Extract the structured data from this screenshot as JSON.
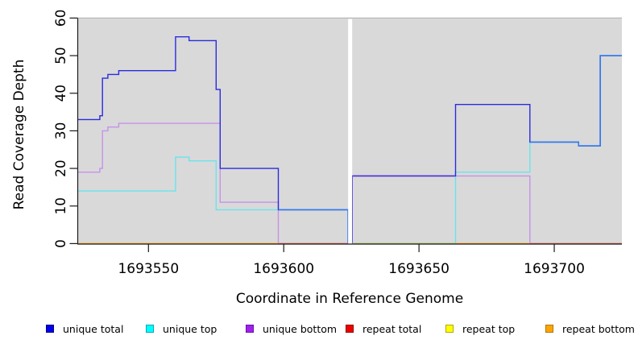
{
  "figure": {
    "background": "#ffffff"
  },
  "chart_data": {
    "type": "line",
    "line_style": "step",
    "title": "",
    "xlabel": "Coordinate in Reference Genome",
    "ylabel": "Read Coverage Depth",
    "xlim": [
      1693524,
      1693725
    ],
    "ylim": [
      0,
      60
    ],
    "xticks": [
      1693550,
      1693600,
      1693650,
      1693700
    ],
    "yticks": [
      0,
      10,
      20,
      30,
      40,
      50,
      60
    ],
    "panel_bg": "#d9d9d9",
    "panel_top_border": "#b9b9b9",
    "axis_color": "#1a1a1a",
    "grid": "off",
    "legend_position": "bottom",
    "gap": {
      "from": 1693623.8,
      "to": 1693625.3,
      "fill": "#ffffff"
    },
    "series": [
      {
        "name": "unique total",
        "line_color": "#2b2bdf",
        "legend_fill": "#0000ee",
        "legend_border": "#00007a",
        "panels": [
          [
            [
              1693524,
              33
            ],
            [
              1693532,
              34
            ],
            [
              1693533,
              44
            ],
            [
              1693535,
              45
            ],
            [
              1693539,
              46
            ],
            [
              1693560,
              55
            ],
            [
              1693565,
              54
            ],
            [
              1693575,
              41
            ],
            [
              1693576.5,
              20
            ],
            [
              1693598,
              9
            ],
            [
              1693623.8,
              0
            ]
          ],
          [
            [
              1693625.3,
              0
            ],
            [
              1693625.3,
              18
            ],
            [
              1693663.5,
              37
            ],
            [
              1693691,
              27
            ],
            [
              1693709,
              26
            ],
            [
              1693717,
              50
            ],
            [
              1693725,
              50
            ]
          ]
        ]
      },
      {
        "name": "unique top",
        "line_color": "#68e4ec",
        "legend_fill": "#00ffff",
        "legend_border": "#00a8b3",
        "panels": [
          [
            [
              1693524,
              14
            ],
            [
              1693560,
              23
            ],
            [
              1693565,
              22
            ],
            [
              1693575,
              9
            ],
            [
              1693623.8,
              0
            ]
          ],
          [
            [
              1693625.3,
              0
            ],
            [
              1693663.5,
              19
            ],
            [
              1693691,
              27
            ],
            [
              1693709,
              26
            ],
            [
              1693717,
              50
            ],
            [
              1693725,
              50
            ]
          ]
        ]
      },
      {
        "name": "unique bottom",
        "line_color": "#c592e9",
        "legend_fill": "#a020f0",
        "legend_border": "#6b0fa8",
        "panels": [
          [
            [
              1693524,
              19
            ],
            [
              1693532,
              20
            ],
            [
              1693533,
              30
            ],
            [
              1693535,
              31
            ],
            [
              1693539,
              32
            ],
            [
              1693576.5,
              11
            ],
            [
              1693598,
              0
            ],
            [
              1693623.8,
              0
            ]
          ],
          [
            [
              1693625.3,
              0
            ],
            [
              1693625.3,
              18
            ],
            [
              1693691,
              0
            ],
            [
              1693725,
              0
            ]
          ]
        ]
      },
      {
        "name": "repeat total",
        "line_color": "#ff2222",
        "legend_fill": "#ee0000",
        "legend_border": "#8f0000",
        "panels": [
          [
            [
              1693524,
              0
            ],
            [
              1693623.8,
              0
            ]
          ],
          [
            [
              1693625.3,
              0
            ],
            [
              1693725,
              0
            ]
          ]
        ]
      },
      {
        "name": "repeat top",
        "line_color": "#ffff33",
        "legend_fill": "#ffff00",
        "legend_border": "#b3a800",
        "panels": [
          [
            [
              1693524,
              0
            ],
            [
              1693623.8,
              0
            ]
          ],
          [
            [
              1693625.3,
              0
            ],
            [
              1693725,
              0
            ]
          ]
        ]
      },
      {
        "name": "repeat bottom",
        "line_color": "#ffa11c",
        "legend_fill": "#ffa500",
        "legend_border": "#b37400",
        "panels": [
          [
            [
              1693524,
              0
            ],
            [
              1693623.8,
              0
            ]
          ],
          [
            [
              1693625.3,
              0
            ],
            [
              1693725,
              0
            ]
          ]
        ]
      }
    ],
    "blend_segments": [
      {
        "color": "#2e7bf0",
        "steps": [
          [
            1693598,
            9
          ],
          [
            1693623.8,
            9
          ],
          [
            1693623.8,
            0
          ]
        ]
      },
      {
        "color": "#2e7bf0",
        "steps": [
          [
            1693691,
            27
          ],
          [
            1693709,
            26
          ],
          [
            1693717,
            50
          ],
          [
            1693725,
            50
          ]
        ]
      },
      {
        "color": "#4b2fd9",
        "steps": [
          [
            1693625.3,
            0
          ],
          [
            1693625.3,
            18
          ],
          [
            1693663.5,
            18
          ]
        ]
      },
      {
        "color": "#d4688c",
        "steps": [
          [
            1693598,
            0
          ],
          [
            1693623.8,
            0
          ]
        ]
      },
      {
        "color": "#d4688c",
        "steps": [
          [
            1693691,
            0
          ],
          [
            1693725,
            0
          ]
        ]
      },
      {
        "color": "#84cb84",
        "steps": [
          [
            1693625.3,
            0
          ],
          [
            1693663.5,
            0
          ]
        ]
      }
    ]
  }
}
